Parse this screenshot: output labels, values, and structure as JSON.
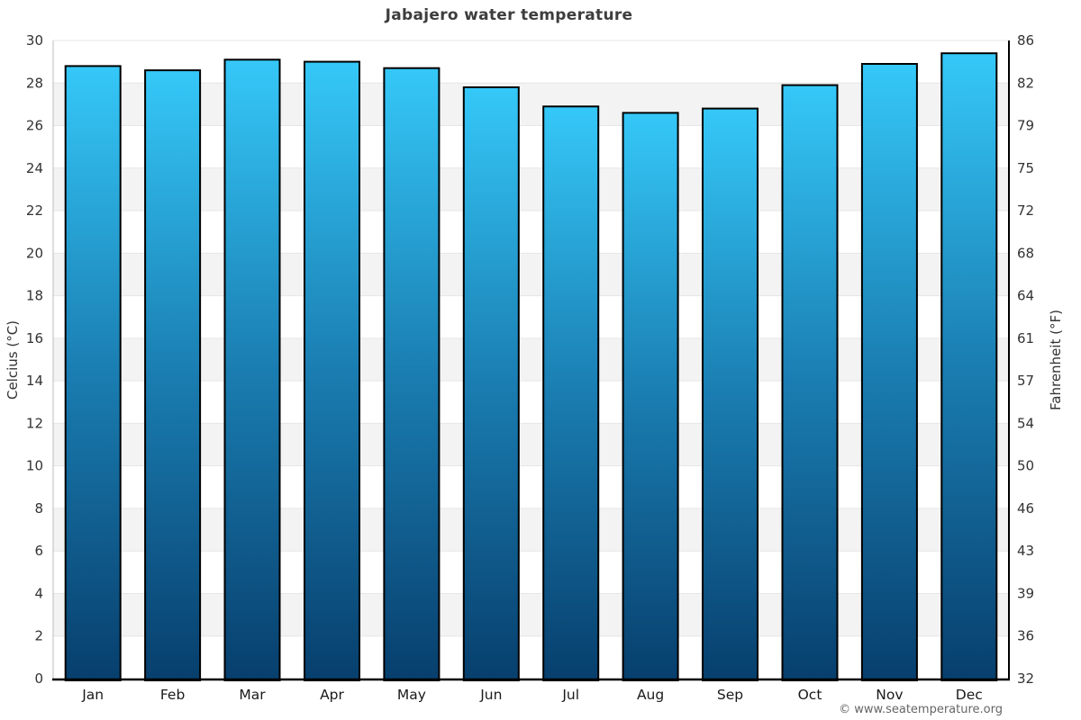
{
  "page": {
    "title": "Jabajero water temperature",
    "footer": "© www.seatemperature.org"
  },
  "axes": {
    "left_label": "Celcius (°C)",
    "right_label": "Fahrenheit (°F)"
  },
  "chart_data": {
    "type": "bar",
    "title": "Jabajero water temperature",
    "categories": [
      "Jan",
      "Feb",
      "Mar",
      "Apr",
      "May",
      "Jun",
      "Jul",
      "Aug",
      "Sep",
      "Oct",
      "Nov",
      "Dec"
    ],
    "values": [
      28.8,
      28.6,
      29.1,
      29.0,
      28.7,
      27.8,
      26.9,
      26.6,
      26.8,
      27.9,
      28.9,
      29.4
    ],
    "series_name": "Water temperature",
    "unit": "°C",
    "ylabel_left": "Celcius (°C)",
    "ylabel_right": "Fahrenheit (°F)",
    "xlabel": "",
    "ylim": [
      0,
      30
    ],
    "y_tick_step_celsius": 2,
    "left_ticks": [
      0,
      2,
      4,
      6,
      8,
      10,
      12,
      14,
      16,
      18,
      20,
      22,
      24,
      26,
      28,
      30
    ],
    "right_ticks": [
      "32",
      "36",
      "39",
      "43",
      "46",
      "50",
      "54",
      "57",
      "61",
      "64",
      "68",
      "72",
      "75",
      "79",
      "82",
      "86"
    ],
    "gray_band_tops": [
      28,
      24,
      20,
      16,
      12,
      8,
      4
    ],
    "legend": "none",
    "grid": "alternating horizontal bands every 2°C with thin gridlines",
    "watermark": "© www.seatemperature.org",
    "colors": {
      "background": "#ffffff",
      "band": "#f3f3f3",
      "gridline": "#e6e6e6",
      "bar_top": "#35c8f8",
      "bar_mid": "#1a7db1",
      "bar_bottom": "#073f6d",
      "bar_border": "#000000",
      "axis_left_spine": "#bdbdbd",
      "axis_right_spine": "#000000",
      "axis_bottom_spine": "#000000",
      "title_text": "#3d3d3d",
      "tick_text": "#333333",
      "month_text": "#1a1a1a",
      "footer_text": "#666666"
    }
  }
}
